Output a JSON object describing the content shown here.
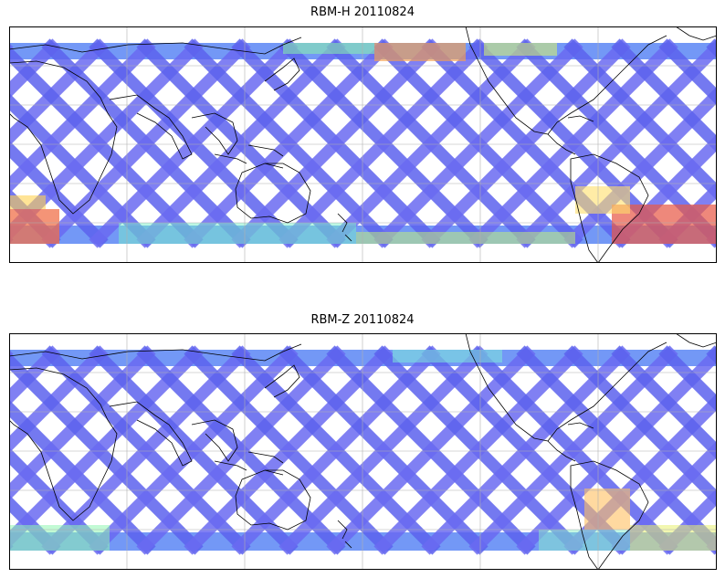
{
  "figure": {
    "panels": [
      {
        "id": "rbm-h",
        "title": "RBM-H 20110824"
      },
      {
        "id": "rbm-z",
        "title": "RBM-Z 20110824"
      }
    ]
  },
  "map_style": {
    "projection": "equirectangular",
    "gridlines": true,
    "track_pattern": "criss-cross satellite swaths",
    "colormap": "jet",
    "alpha": 0.65,
    "coastline_color": "#000000",
    "grid_color": "#b0b0b0"
  },
  "panel_fields": {
    "rbm-h": {
      "base_level": "low (blue)",
      "high_regions": [
        "southern ocean south of Africa",
        "south Atlantic off South America",
        "north Pacific north edge",
        "southern high latitudes"
      ]
    },
    "rbm-z": {
      "base_level": "low (blue)",
      "high_regions": [
        "south Atlantic off South America",
        "southern high latitudes"
      ]
    }
  }
}
